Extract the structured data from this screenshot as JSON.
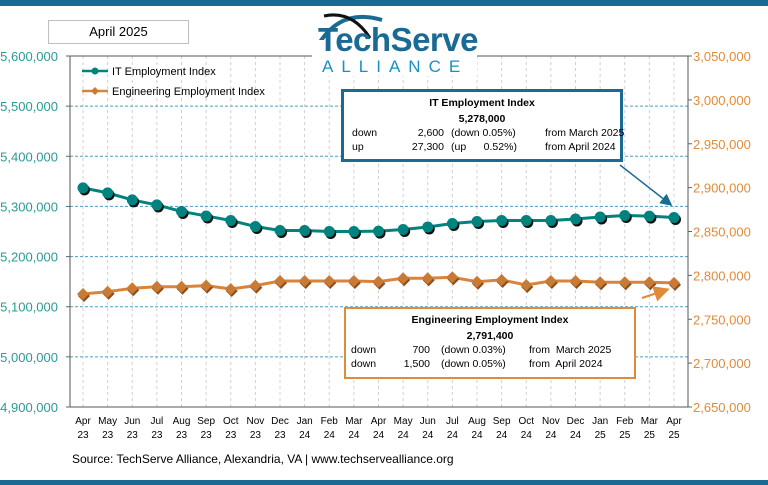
{
  "date_label": "April 2025",
  "logo": {
    "line1": "TechServe",
    "line2": "ALLIANCE"
  },
  "source": "Source: TechServe Alliance, Alexandria, VA | www.techservealliance.org",
  "colors": {
    "it": "#00837e",
    "eng": "#d9833b",
    "brand": "#1a6a94",
    "left_axis": "#2a9a96",
    "right_axis": "#e08b3a"
  },
  "it_box": {
    "title": "IT Employment Index",
    "value": "5,278,000",
    "rows": [
      {
        "dir": "down",
        "amount": "2,600",
        "pct": "(down 0.05%)",
        "from": "from March 2025"
      },
      {
        "dir": "up",
        "amount": "27,300",
        "pct": "(up      0.52%)",
        "from": "from April 2024"
      }
    ]
  },
  "eng_box": {
    "title": "Engineering Employment Index",
    "value": "2,791,400",
    "rows": [
      {
        "dir": "down",
        "amount": "700",
        "pct": "(down 0.03%)",
        "from": "from  March 2025"
      },
      {
        "dir": "down",
        "amount": "1,500",
        "pct": "(down 0.05%)",
        "from": "from  April 2024"
      }
    ]
  },
  "chart_data": {
    "type": "line",
    "categories": [
      [
        "Apr",
        "23"
      ],
      [
        "May",
        "23"
      ],
      [
        "Jun",
        "23"
      ],
      [
        "Jul",
        "23"
      ],
      [
        "Aug",
        "23"
      ],
      [
        "Sep",
        "23"
      ],
      [
        "Oct",
        "23"
      ],
      [
        "Nov",
        "23"
      ],
      [
        "Dec",
        "23"
      ],
      [
        "Jan",
        "24"
      ],
      [
        "Feb",
        "24"
      ],
      [
        "Mar",
        "24"
      ],
      [
        "Apr",
        "24"
      ],
      [
        "May",
        "24"
      ],
      [
        "Jun",
        "24"
      ],
      [
        "Jul",
        "24"
      ],
      [
        "Aug",
        "24"
      ],
      [
        "Sep",
        "24"
      ],
      [
        "Oct",
        "24"
      ],
      [
        "Nov",
        "24"
      ],
      [
        "Dec",
        "24"
      ],
      [
        "Jan",
        "25"
      ],
      [
        "Feb",
        "25"
      ],
      [
        "Mar",
        "25"
      ],
      [
        "Apr",
        "25"
      ]
    ],
    "left_axis": {
      "ylim": [
        4900000,
        5600000
      ],
      "ticks": [
        "4,900,000",
        "5,000,000",
        "5,100,000",
        "5,200,000",
        "5,300,000",
        "5,400,000",
        "5,500,000",
        "5,600,000"
      ]
    },
    "right_axis": {
      "ylim": [
        2650000,
        3050000
      ],
      "ticks": [
        "2,650,000",
        "2,700,000",
        "2,750,000",
        "2,800,000",
        "2,850,000",
        "2,900,000",
        "2,950,000",
        "3,000,000",
        "3,050,000"
      ]
    },
    "grid": true,
    "legend": "top-left",
    "series": [
      {
        "name": "IT Employment Index",
        "axis": "left",
        "marker": "circle",
        "values": [
          5337000,
          5327000,
          5313000,
          5303000,
          5290000,
          5281000,
          5272000,
          5260000,
          5252000,
          5252000,
          5250000,
          5250000,
          5250700,
          5254000,
          5259000,
          5266000,
          5270000,
          5272000,
          5272000,
          5272000,
          5275000,
          5279000,
          5282000,
          5280600,
          5278000
        ]
      },
      {
        "name": "Engineering Employment Index",
        "axis": "right",
        "marker": "diamond",
        "values": [
          2778800,
          2781400,
          2785300,
          2787100,
          2787100,
          2788300,
          2784500,
          2788300,
          2793600,
          2793600,
          2793600,
          2793600,
          2792900,
          2796700,
          2796700,
          2797800,
          2792800,
          2794800,
          2789100,
          2793600,
          2793600,
          2792100,
          2792100,
          2792100,
          2791400
        ]
      }
    ]
  }
}
